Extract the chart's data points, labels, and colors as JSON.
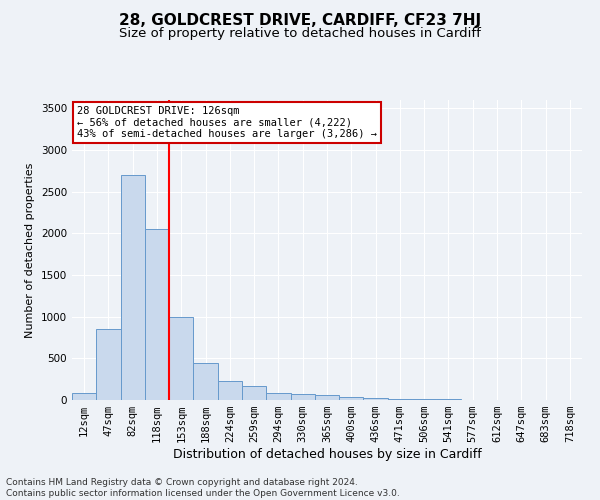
{
  "title1": "28, GOLDCREST DRIVE, CARDIFF, CF23 7HJ",
  "title2": "Size of property relative to detached houses in Cardiff",
  "xlabel": "Distribution of detached houses by size in Cardiff",
  "ylabel": "Number of detached properties",
  "categories": [
    "12sqm",
    "47sqm",
    "82sqm",
    "118sqm",
    "153sqm",
    "188sqm",
    "224sqm",
    "259sqm",
    "294sqm",
    "330sqm",
    "365sqm",
    "400sqm",
    "436sqm",
    "471sqm",
    "506sqm",
    "541sqm",
    "577sqm",
    "612sqm",
    "647sqm",
    "683sqm",
    "718sqm"
  ],
  "values": [
    85,
    850,
    2700,
    2050,
    1000,
    450,
    230,
    165,
    90,
    75,
    55,
    40,
    20,
    15,
    10,
    8,
    5,
    5,
    3,
    2,
    2
  ],
  "bar_color": "#c9d9ed",
  "bar_edge_color": "#6699cc",
  "annotation_text1": "28 GOLDCREST DRIVE: 126sqm",
  "annotation_text2": "← 56% of detached houses are smaller (4,222)",
  "annotation_text3": "43% of semi-detached houses are larger (3,286) →",
  "annotation_box_color": "#ffffff",
  "annotation_box_edge": "#cc0000",
  "red_line_x": 3.5,
  "ylim": [
    0,
    3600
  ],
  "yticks": [
    0,
    500,
    1000,
    1500,
    2000,
    2500,
    3000,
    3500
  ],
  "footer1": "Contains HM Land Registry data © Crown copyright and database right 2024.",
  "footer2": "Contains public sector information licensed under the Open Government Licence v3.0.",
  "background_color": "#eef2f7",
  "grid_color": "#ffffff",
  "title1_fontsize": 11,
  "title2_fontsize": 9.5,
  "xlabel_fontsize": 9,
  "ylabel_fontsize": 8,
  "tick_fontsize": 7.5,
  "footer_fontsize": 6.5,
  "ann_fontsize": 7.5
}
